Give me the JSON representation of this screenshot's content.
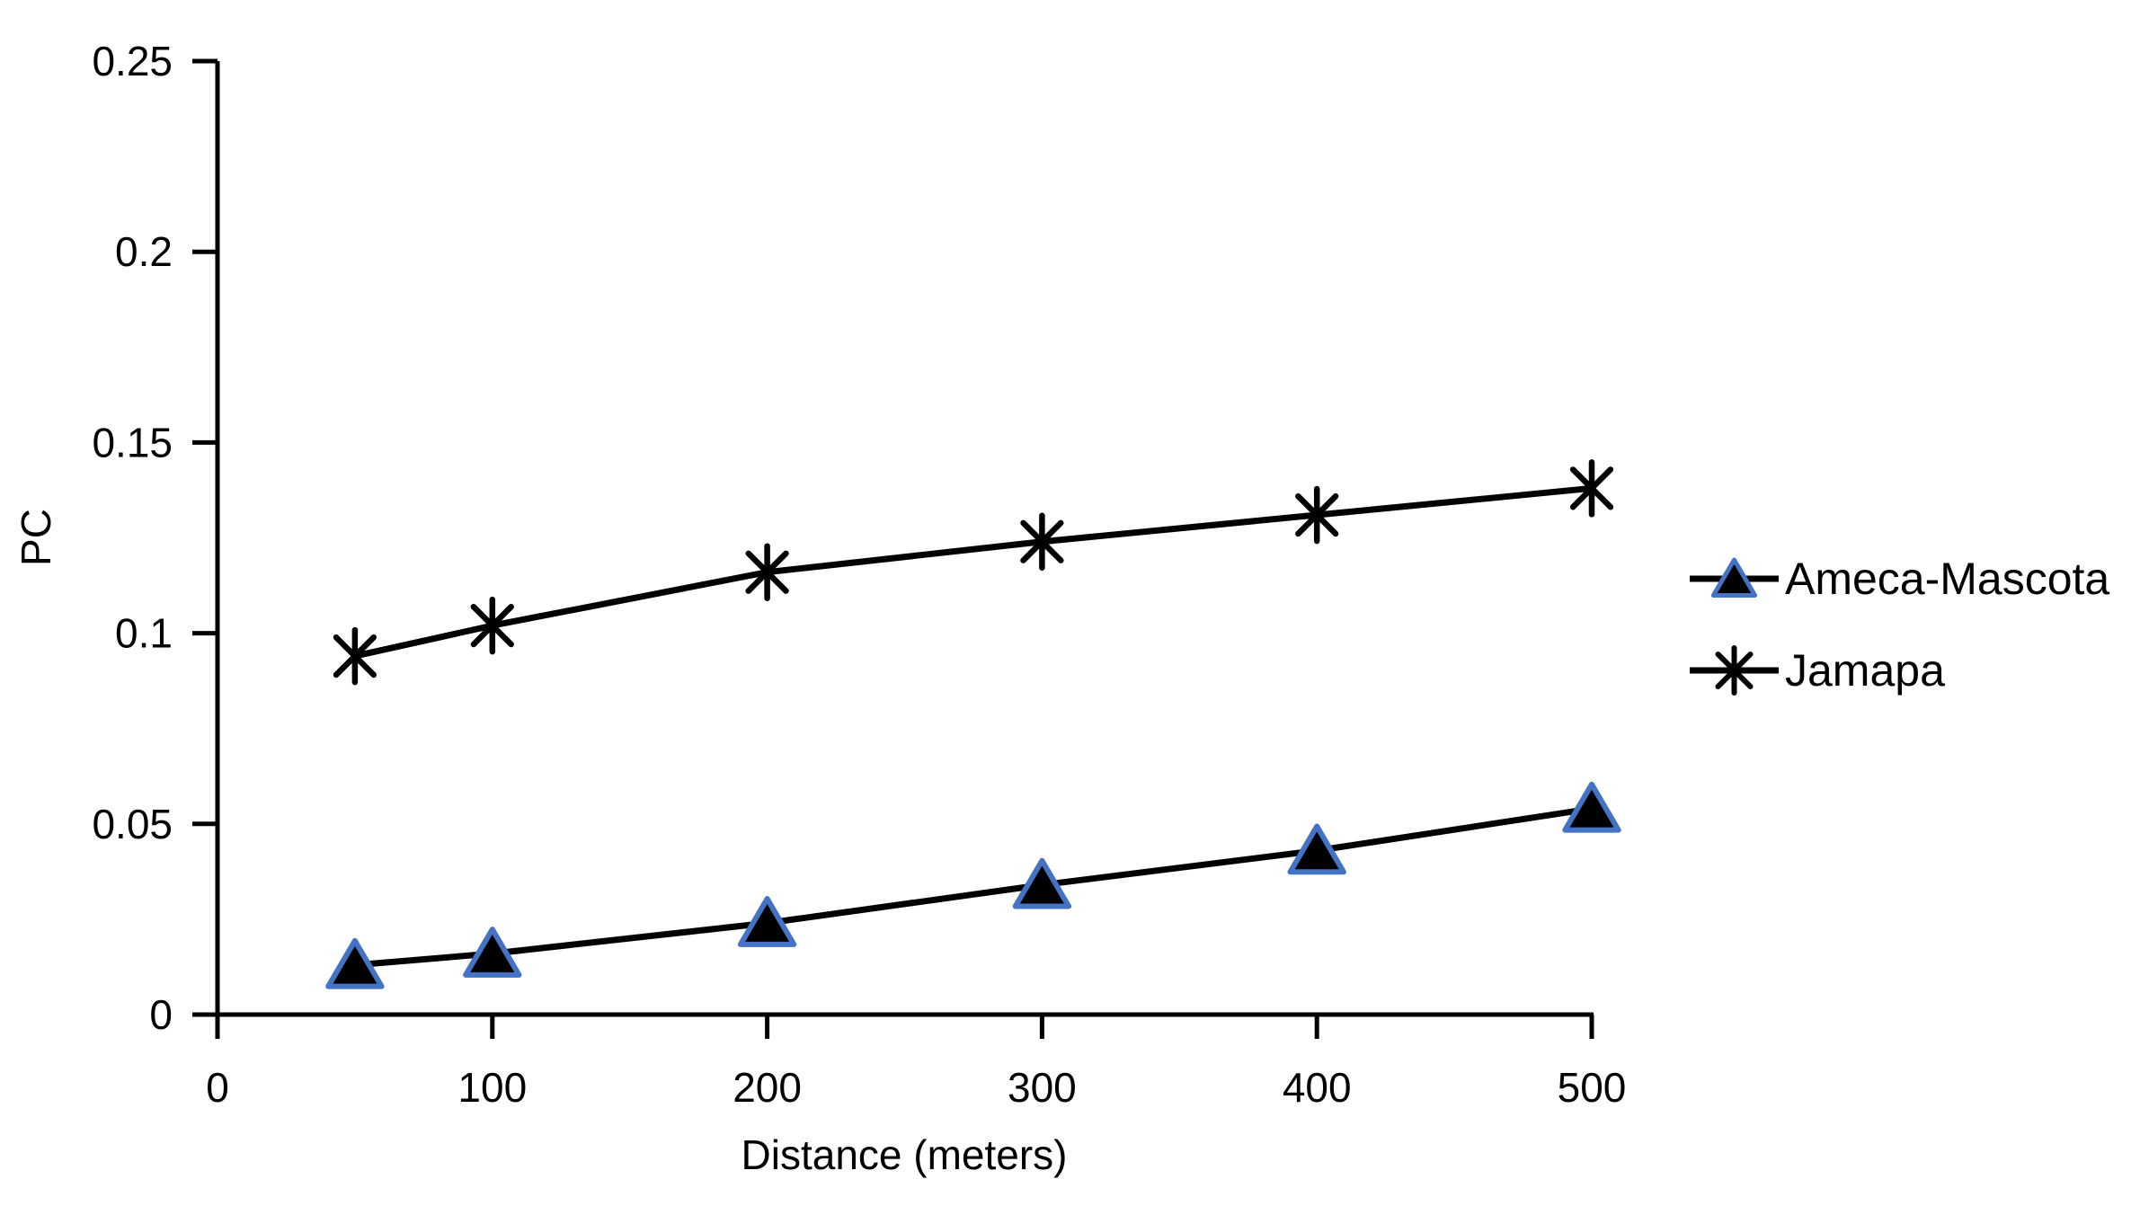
{
  "figure": {
    "background": "#ffffff",
    "text_color": "#000000",
    "axis_color": "#000000"
  },
  "chart_data": {
    "type": "line",
    "title": "",
    "xlabel": "Distance (meters)",
    "ylabel": "PC",
    "x": [
      50,
      100,
      200,
      300,
      400,
      500
    ],
    "series": [
      {
        "name": "Ameca-Mascota",
        "values": [
          0.013,
          0.016,
          0.024,
          0.034,
          0.043,
          0.054
        ],
        "marker": "triangle",
        "line_color": "#000000",
        "marker_fill": "#000000",
        "marker_border_color": "#4472C4"
      },
      {
        "name": "Jamapa",
        "values": [
          0.094,
          0.102,
          0.116,
          0.124,
          0.131,
          0.138
        ],
        "marker": "asterisk",
        "line_color": "#000000",
        "marker_fill": "#000000",
        "marker_border_color": "#000000"
      }
    ],
    "xlim": [
      0,
      500
    ],
    "ylim": [
      0,
      0.25
    ],
    "x_ticks": [
      0,
      100,
      200,
      300,
      400,
      500
    ],
    "x_tick_labels": [
      "0",
      "100",
      "200",
      "300",
      "400",
      "500"
    ],
    "y_ticks": [
      0,
      0.05,
      0.1,
      0.15,
      0.2,
      0.25
    ],
    "y_tick_labels": [
      "0",
      "0.05",
      "0.1",
      "0.15",
      "0.2",
      "0.25"
    ],
    "grid": false,
    "legend_position": "right-middle"
  }
}
